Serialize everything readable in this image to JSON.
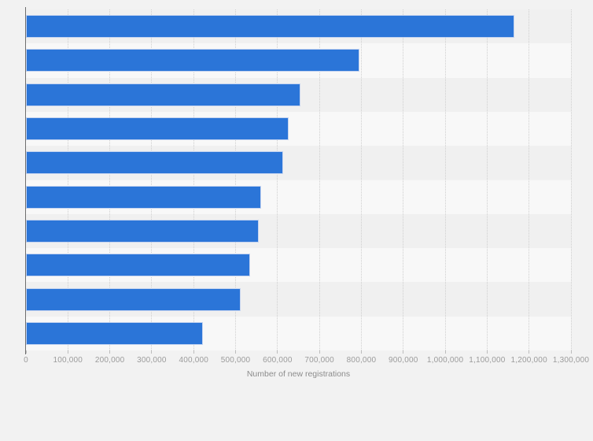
{
  "chart_data": {
    "type": "bar",
    "orientation": "horizontal",
    "title": "",
    "xlabel": "Number of new registrations",
    "ylabel": "",
    "categories": [
      "",
      "",
      "",
      "",
      "",
      "",
      "",
      "",
      "",
      ""
    ],
    "values": [
      1164000,
      795000,
      655000,
      626000,
      614000,
      561000,
      556000,
      535000,
      513000,
      422000
    ],
    "xlim": [
      0,
      1300000
    ],
    "x_ticks": [
      0,
      100000,
      200000,
      300000,
      400000,
      500000,
      600000,
      700000,
      800000,
      900000,
      1000000,
      1100000,
      1200000,
      1300000
    ],
    "x_tick_labels": [
      "0",
      "100,000",
      "200,000",
      "300,000",
      "400,000",
      "500,000",
      "600,000",
      "700,000",
      "800,000",
      "900,000",
      "1,000,000",
      "1,100,000",
      "1,200,000",
      "1,300,000"
    ],
    "grid": "vertical-dotted",
    "legend": false
  },
  "colors": {
    "page_background": "#f2f2f2",
    "bar_fill": "#2b75d8",
    "bar_border": "#c5d4f0",
    "band_dark": "#f0f0f0",
    "band_light": "#f8f8f8",
    "gridline": "#cfcfcf",
    "axis_line": "#6e6e6e",
    "tick_mark": "#bdbdbd",
    "tick_label": "#9b9b9b",
    "axis_title": "#8c8c8c"
  }
}
